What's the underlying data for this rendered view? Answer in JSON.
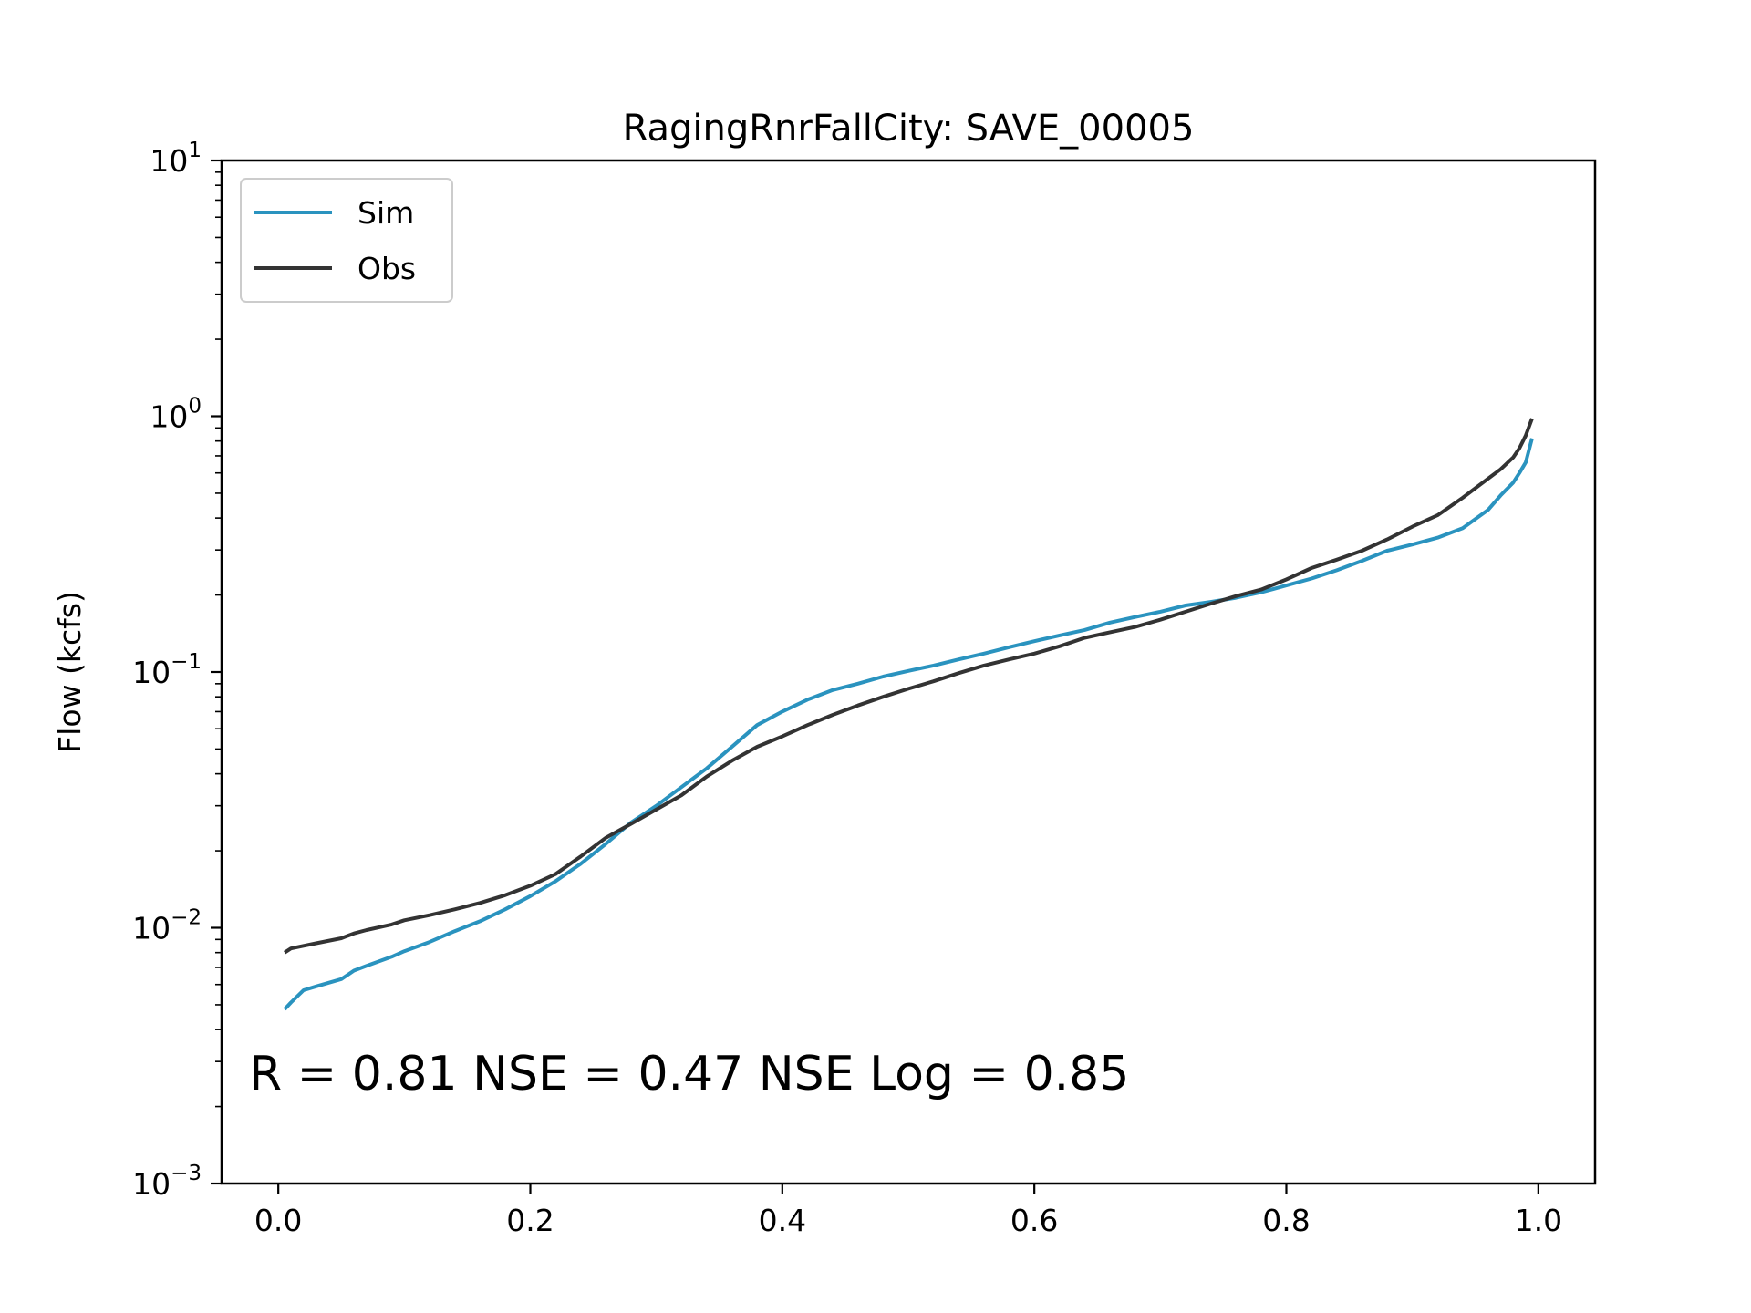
{
  "chart_data": {
    "type": "line",
    "title": "RagingRnrFallCity: SAVE_00005",
    "xlabel": "",
    "ylabel": "Flow (kcfs)",
    "xlim": [
      -0.045,
      1.045
    ],
    "ylim": [
      0.001,
      10
    ],
    "yscale": "log",
    "grid": false,
    "legend_placement": "top-left",
    "x_ticks": [
      0.0,
      0.2,
      0.4,
      0.6,
      0.8,
      1.0
    ],
    "x_tick_labels": [
      "0.0",
      "0.2",
      "0.4",
      "0.6",
      "0.8",
      "1.0"
    ],
    "y_ticks": [
      {
        "value": 0.001,
        "base": "10",
        "exp": "−3"
      },
      {
        "value": 0.01,
        "base": "10",
        "exp": "−2"
      },
      {
        "value": 0.1,
        "base": "10",
        "exp": "−1"
      },
      {
        "value": 1,
        "base": "10",
        "exp": "0"
      },
      {
        "value": 10,
        "base": "10",
        "exp": "1"
      }
    ],
    "annotation": "R = 0.81  NSE = 0.47  NSE Log = 0.85",
    "series": [
      {
        "name": "Sim",
        "color": "#2a93bf",
        "x": [
          0.005,
          0.01,
          0.02,
          0.03,
          0.05,
          0.06,
          0.07,
          0.09,
          0.1,
          0.12,
          0.14,
          0.16,
          0.18,
          0.2,
          0.22,
          0.24,
          0.26,
          0.28,
          0.3,
          0.32,
          0.34,
          0.36,
          0.38,
          0.4,
          0.42,
          0.44,
          0.46,
          0.48,
          0.5,
          0.52,
          0.54,
          0.56,
          0.58,
          0.6,
          0.62,
          0.64,
          0.66,
          0.68,
          0.7,
          0.72,
          0.74,
          0.76,
          0.78,
          0.8,
          0.82,
          0.84,
          0.86,
          0.88,
          0.9,
          0.92,
          0.94,
          0.96,
          0.97,
          0.98,
          0.985,
          0.99,
          0.995
        ],
        "y": [
          0.0048,
          0.0051,
          0.0057,
          0.0059,
          0.0063,
          0.0068,
          0.0071,
          0.0077,
          0.0081,
          0.0088,
          0.0097,
          0.0106,
          0.0118,
          0.0133,
          0.0152,
          0.0178,
          0.0213,
          0.0258,
          0.03,
          0.0355,
          0.042,
          0.051,
          0.062,
          0.07,
          0.078,
          0.085,
          0.09,
          0.096,
          0.101,
          0.106,
          0.112,
          0.118,
          0.125,
          0.132,
          0.139,
          0.146,
          0.156,
          0.164,
          0.172,
          0.182,
          0.188,
          0.195,
          0.205,
          0.218,
          0.232,
          0.25,
          0.272,
          0.298,
          0.315,
          0.335,
          0.365,
          0.43,
          0.49,
          0.55,
          0.6,
          0.66,
          0.82
        ]
      },
      {
        "name": "Obs",
        "color": "#333333",
        "x": [
          0.005,
          0.01,
          0.02,
          0.03,
          0.05,
          0.06,
          0.07,
          0.09,
          0.1,
          0.12,
          0.14,
          0.16,
          0.18,
          0.2,
          0.22,
          0.24,
          0.26,
          0.28,
          0.3,
          0.32,
          0.34,
          0.36,
          0.38,
          0.4,
          0.42,
          0.44,
          0.46,
          0.48,
          0.5,
          0.52,
          0.54,
          0.56,
          0.58,
          0.6,
          0.62,
          0.64,
          0.66,
          0.68,
          0.7,
          0.72,
          0.74,
          0.76,
          0.78,
          0.8,
          0.82,
          0.84,
          0.86,
          0.88,
          0.9,
          0.92,
          0.94,
          0.96,
          0.97,
          0.98,
          0.985,
          0.99,
          0.995
        ],
        "y": [
          0.008,
          0.0083,
          0.0085,
          0.0087,
          0.0091,
          0.0095,
          0.0098,
          0.0103,
          0.0107,
          0.0112,
          0.0118,
          0.0125,
          0.0134,
          0.0146,
          0.0162,
          0.019,
          0.0225,
          0.0255,
          0.029,
          0.033,
          0.039,
          0.045,
          0.051,
          0.056,
          0.062,
          0.068,
          0.074,
          0.08,
          0.086,
          0.092,
          0.099,
          0.106,
          0.112,
          0.118,
          0.126,
          0.136,
          0.143,
          0.15,
          0.16,
          0.172,
          0.185,
          0.198,
          0.21,
          0.23,
          0.255,
          0.275,
          0.298,
          0.33,
          0.37,
          0.41,
          0.48,
          0.57,
          0.62,
          0.69,
          0.75,
          0.84,
          0.98
        ]
      }
    ]
  }
}
